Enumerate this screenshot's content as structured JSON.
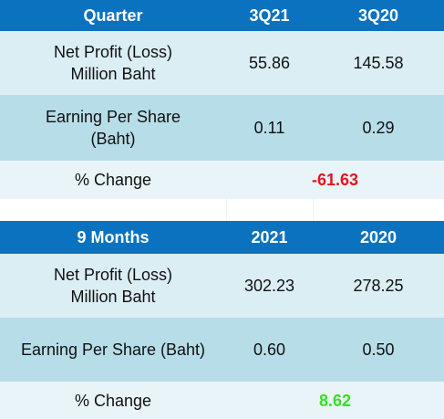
{
  "quarter_table": {
    "header": {
      "label": "Quarter",
      "col1": "3Q21",
      "col2": "3Q20"
    },
    "net_profit": {
      "label_line1": "Net Profit (Loss)",
      "label_line2": "Million Baht",
      "col1": "55.86",
      "col2": "145.58"
    },
    "eps": {
      "label_line1": "Earning Per Share",
      "label_line2": "(Baht)",
      "col1": "0.11",
      "col2": "0.29"
    },
    "change": {
      "label": "% Change",
      "value": "-61.63",
      "color": "#e8141d"
    }
  },
  "nine_months_table": {
    "header": {
      "label": "9 Months",
      "col1": "2021",
      "col2": "2020"
    },
    "net_profit": {
      "label_line1": "Net Profit (Loss)",
      "label_line2": "Million Baht",
      "col1": "302.23",
      "col2": "278.25"
    },
    "eps": {
      "label": "Earning Per Share (Baht)",
      "col1": "0.60",
      "col2": "0.50"
    },
    "change": {
      "label": "% Change",
      "value": "8.62",
      "color": "#3ae023"
    }
  },
  "colors": {
    "header_bg": "#0b72c0",
    "row_light": "#dbeef4",
    "row_dark": "#b7dde8",
    "row_pale": "#e9f4f8"
  }
}
